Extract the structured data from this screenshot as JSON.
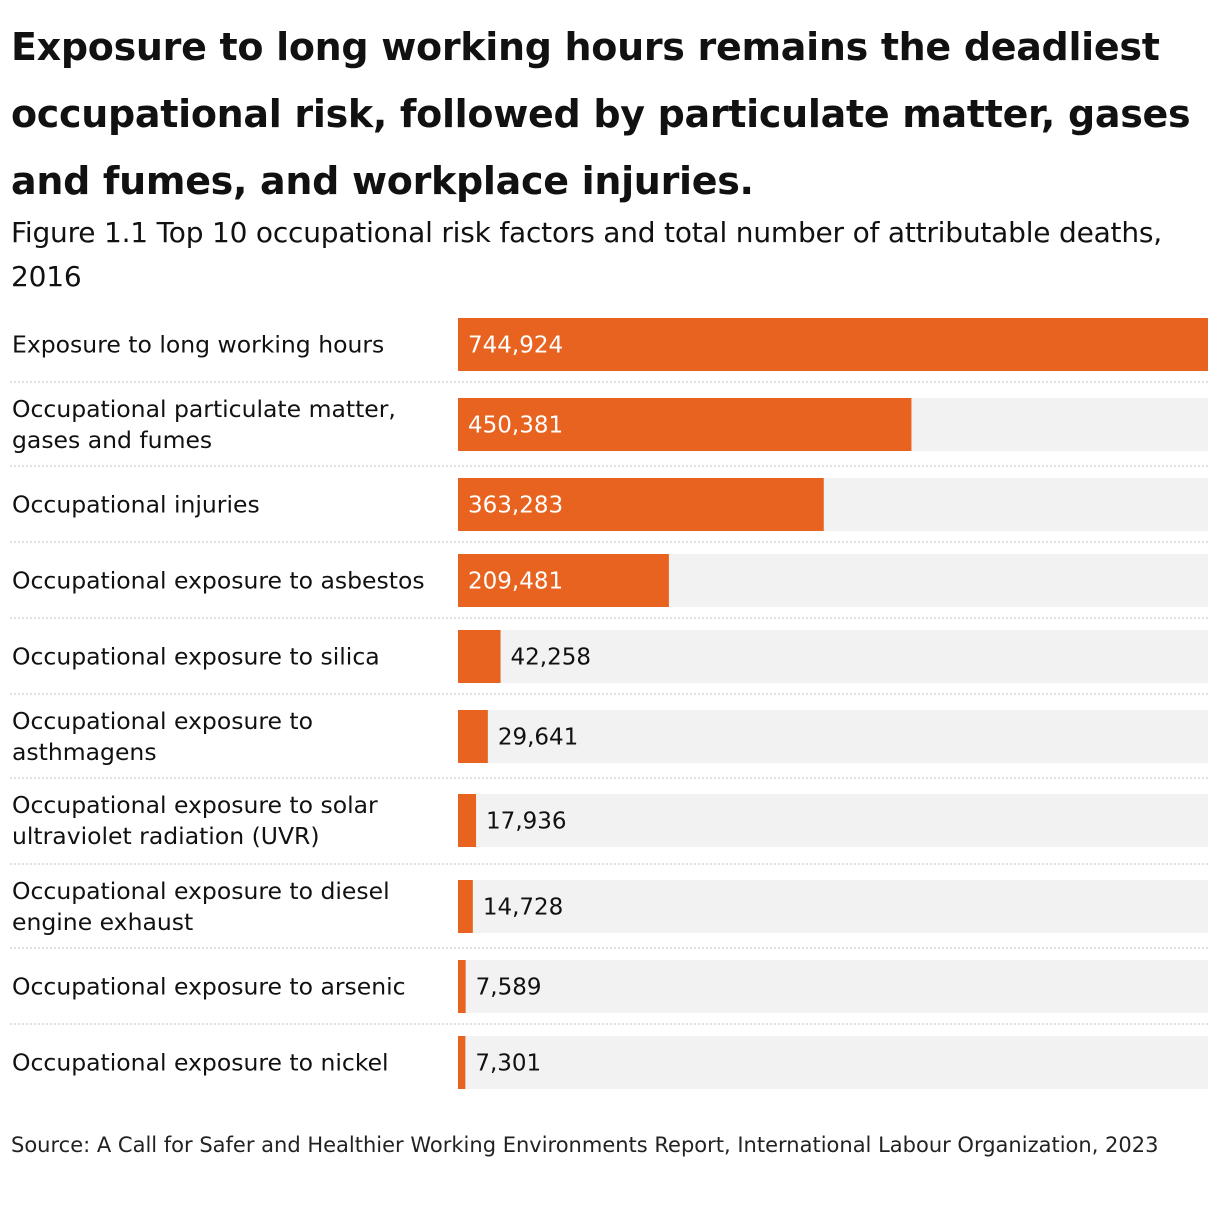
{
  "title": "Exposure to long working hours remains the deadliest occupational risk, followed by particulate matter, gases and fumes, and workplace injuries.",
  "subtitle": "Figure 1.1 Top 10 occupational risk factors and total number of attributable deaths, 2016",
  "source": "Source: A Call for Safer and Healthier Working Environments Report, International Labour Organization, 2023",
  "colors": {
    "bar": "#E8631F",
    "track": "#F2F2F2",
    "divider": "#CFCFCF"
  },
  "chart_data": {
    "type": "bar",
    "orientation": "horizontal",
    "xlim": [
      0,
      744924
    ],
    "grid": false,
    "categories": [
      [
        "Exposure to long working hours"
      ],
      [
        "Occupational particulate matter,",
        "gases and fumes"
      ],
      [
        "Occupational injuries"
      ],
      [
        "Occupational exposure to asbestos"
      ],
      [
        "Occupational exposure to silica"
      ],
      [
        "Occupational exposure to",
        "asthmagens"
      ],
      [
        "Occupational exposure to solar",
        "ultraviolet radiation (UVR)"
      ],
      [
        "Occupational exposure to diesel",
        "engine exhaust"
      ],
      [
        "Occupational exposure to arsenic"
      ],
      [
        "Occupational exposure to nickel"
      ]
    ],
    "values": [
      744924,
      450381,
      363283,
      209481,
      42258,
      29641,
      17936,
      14728,
      7589,
      7301
    ],
    "value_labels": [
      "744,924",
      "450,381",
      "363,283",
      "209,481",
      "42,258",
      "29,641",
      "17,936",
      "14,728",
      "7,589",
      "7,301"
    ]
  }
}
